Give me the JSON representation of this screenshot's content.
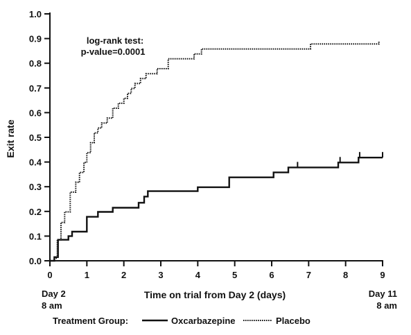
{
  "chart_data": {
    "type": "line",
    "xlabel": "Time on trial from Day 2 (days)",
    "ylabel": "Exit rate",
    "xlim": [
      0,
      9
    ],
    "ylim": [
      0,
      1.0
    ],
    "x_ticks": [
      0,
      1,
      2,
      3,
      4,
      5,
      6,
      7,
      8,
      9
    ],
    "y_ticks": [
      "0.0",
      "0.1",
      "0.2",
      "0.3",
      "0.4",
      "0.5",
      "0.6",
      "0.7",
      "0.8",
      "0.9",
      "1.0"
    ],
    "x_start_label": [
      "Day 2",
      "8 am"
    ],
    "x_end_label": [
      "Day 11",
      "8 am"
    ],
    "grid": false,
    "annotation": [
      "log-rank test:",
      "p-value=0.0001"
    ],
    "legend": {
      "title": "Treatment Group:",
      "position": "bottom"
    },
    "series": [
      {
        "name": "Oxcarbazepine",
        "style": "solid",
        "color": "#111111",
        "step": true,
        "x": [
          0,
          0.12,
          0.22,
          0.5,
          0.6,
          1.0,
          1.3,
          1.7,
          2.4,
          2.55,
          2.65,
          4.0,
          4.85,
          6.05,
          6.45,
          7.8,
          8.35,
          9.0
        ],
        "y": [
          0.0,
          0.015,
          0.085,
          0.1,
          0.118,
          0.178,
          0.198,
          0.215,
          0.235,
          0.26,
          0.282,
          0.298,
          0.338,
          0.358,
          0.378,
          0.398,
          0.418,
          0.418
        ],
        "censor_x": [
          6.7,
          7.85,
          8.38,
          9.0
        ],
        "censor_y": [
          0.378,
          0.398,
          0.418,
          0.418
        ]
      },
      {
        "name": "Placebo",
        "style": "dotted",
        "color": "#111111",
        "step": true,
        "x": [
          0,
          0.12,
          0.2,
          0.3,
          0.4,
          0.55,
          0.7,
          0.8,
          0.92,
          1.0,
          1.1,
          1.2,
          1.3,
          1.4,
          1.55,
          1.7,
          1.85,
          2.0,
          2.1,
          2.2,
          2.3,
          2.45,
          2.6,
          2.75,
          2.9,
          3.2,
          3.9,
          4.0,
          4.1,
          7.05,
          8.9
        ],
        "y": [
          0.0,
          0.01,
          0.085,
          0.155,
          0.198,
          0.278,
          0.318,
          0.358,
          0.398,
          0.438,
          0.478,
          0.518,
          0.538,
          0.558,
          0.578,
          0.618,
          0.638,
          0.658,
          0.678,
          0.698,
          0.718,
          0.738,
          0.758,
          0.758,
          0.778,
          0.818,
          0.838,
          0.838,
          0.858,
          0.878,
          0.888
        ]
      }
    ]
  }
}
